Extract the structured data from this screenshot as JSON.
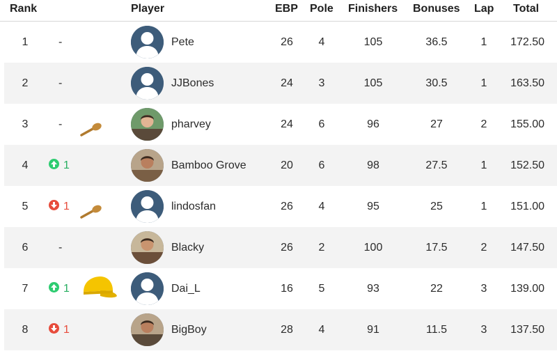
{
  "header": {
    "rank": "Rank",
    "player": "Player",
    "ebp": "EBP",
    "pole": "Pole",
    "finishers": "Finishers",
    "bonuses": "Bonuses",
    "lap": "Lap",
    "total": "Total"
  },
  "colors": {
    "up": "#27ae60",
    "down": "#e74c3c",
    "row_alt": "#f3f3f3",
    "avatar_default": "#3d5c7a"
  },
  "rows": [
    {
      "rank": "1",
      "movement": "-",
      "movement_dir": "none",
      "badge": "",
      "avatar": "default-avatar-icon",
      "player": "Pete",
      "ebp": "26",
      "pole": "4",
      "finishers": "105",
      "bonuses": "36.5",
      "lap": "1",
      "total": "172.50"
    },
    {
      "rank": "2",
      "movement": "-",
      "movement_dir": "none",
      "badge": "",
      "avatar": "default-avatar-icon",
      "player": "JJBones",
      "ebp": "24",
      "pole": "3",
      "finishers": "105",
      "bonuses": "30.5",
      "lap": "1",
      "total": "163.50"
    },
    {
      "rank": "3",
      "movement": "-",
      "movement_dir": "none",
      "badge": "wooden-spoon-icon",
      "avatar": "photo-avatar",
      "player": "pharvey",
      "ebp": "24",
      "pole": "6",
      "finishers": "96",
      "bonuses": "27",
      "lap": "2",
      "total": "155.00"
    },
    {
      "rank": "4",
      "movement": "1",
      "movement_dir": "up",
      "badge": "",
      "avatar": "photo-avatar",
      "player": "Bamboo Grove",
      "ebp": "20",
      "pole": "6",
      "finishers": "98",
      "bonuses": "27.5",
      "lap": "1",
      "total": "152.50"
    },
    {
      "rank": "5",
      "movement": "1",
      "movement_dir": "down",
      "badge": "wooden-spoon-icon",
      "avatar": "default-avatar-icon",
      "player": "lindosfan",
      "ebp": "26",
      "pole": "4",
      "finishers": "95",
      "bonuses": "25",
      "lap": "1",
      "total": "151.00"
    },
    {
      "rank": "6",
      "movement": "-",
      "movement_dir": "none",
      "badge": "",
      "avatar": "photo-avatar",
      "player": "Blacky",
      "ebp": "26",
      "pole": "2",
      "finishers": "100",
      "bonuses": "17.5",
      "lap": "2",
      "total": "147.50"
    },
    {
      "rank": "7",
      "movement": "1",
      "movement_dir": "up",
      "badge": "yellow-cap-icon",
      "avatar": "default-avatar-icon",
      "player": "Dai_L",
      "ebp": "16",
      "pole": "5",
      "finishers": "93",
      "bonuses": "22",
      "lap": "3",
      "total": "139.00"
    },
    {
      "rank": "8",
      "movement": "1",
      "movement_dir": "down",
      "badge": "",
      "avatar": "photo-avatar",
      "player": "BigBoy",
      "ebp": "28",
      "pole": "4",
      "finishers": "91",
      "bonuses": "11.5",
      "lap": "3",
      "total": "137.50"
    }
  ]
}
